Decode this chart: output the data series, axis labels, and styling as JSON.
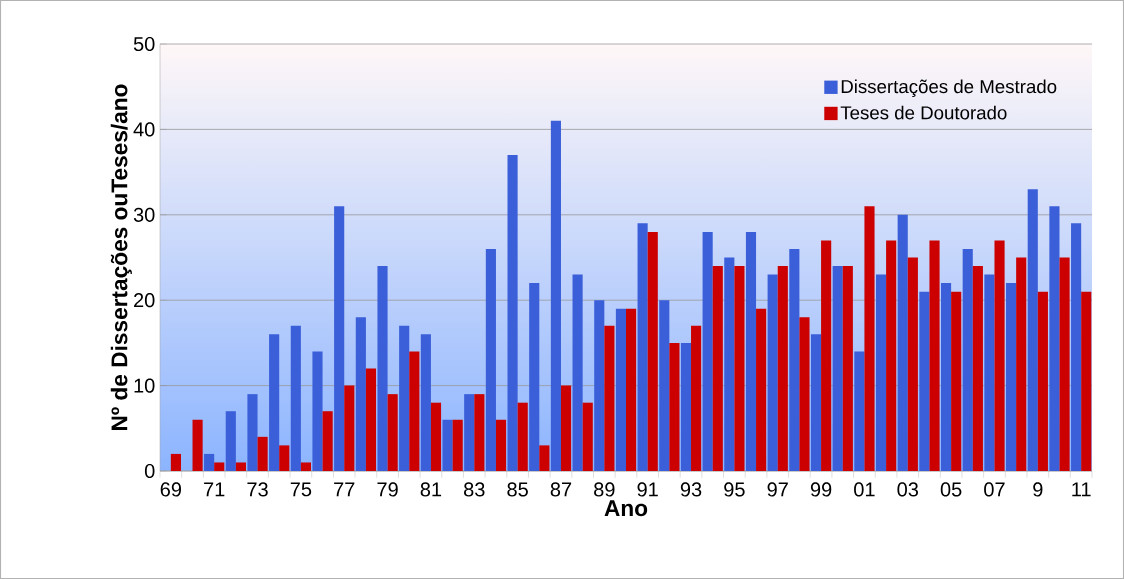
{
  "chart_data": {
    "type": "bar",
    "xlabel": "Ano",
    "ylabel": "Nº de Dissertações ouTeses/ano",
    "categories": [
      "69",
      null,
      "71",
      null,
      "73",
      null,
      "75",
      null,
      "77",
      null,
      "79",
      null,
      "81",
      null,
      "83",
      null,
      "85",
      null,
      "87",
      null,
      "89",
      null,
      "91",
      null,
      "93",
      null,
      "95",
      null,
      "97",
      null,
      "99",
      null,
      "01",
      null,
      "03",
      null,
      "05",
      null,
      "07",
      null,
      "9",
      null,
      "11"
    ],
    "series": [
      {
        "name": "Dissertações de Mestrado",
        "color": "#3a5fd9",
        "values": [
          0,
          0,
          2,
          7,
          9,
          16,
          17,
          14,
          31,
          18,
          24,
          17,
          16,
          6,
          9,
          26,
          37,
          22,
          41,
          23,
          20,
          19,
          29,
          20,
          15,
          28,
          25,
          28,
          23,
          26,
          16,
          24,
          14,
          23,
          30,
          21,
          22,
          26,
          23,
          22,
          33,
          31,
          29
        ]
      },
      {
        "name": "Teses de Doutorado",
        "color": "#cc0000",
        "values": [
          2,
          6,
          1,
          1,
          4,
          3,
          1,
          7,
          10,
          12,
          9,
          14,
          8,
          6,
          9,
          6,
          8,
          3,
          10,
          8,
          17,
          19,
          28,
          15,
          17,
          24,
          24,
          19,
          24,
          18,
          27,
          24,
          31,
          27,
          25,
          27,
          21,
          24,
          27,
          25,
          21,
          25,
          21
        ]
      }
    ],
    "ylim": [
      0,
      50
    ],
    "yticks": [
      0,
      10,
      20,
      30,
      40,
      50
    ],
    "grid": "y",
    "legend": "top right"
  }
}
